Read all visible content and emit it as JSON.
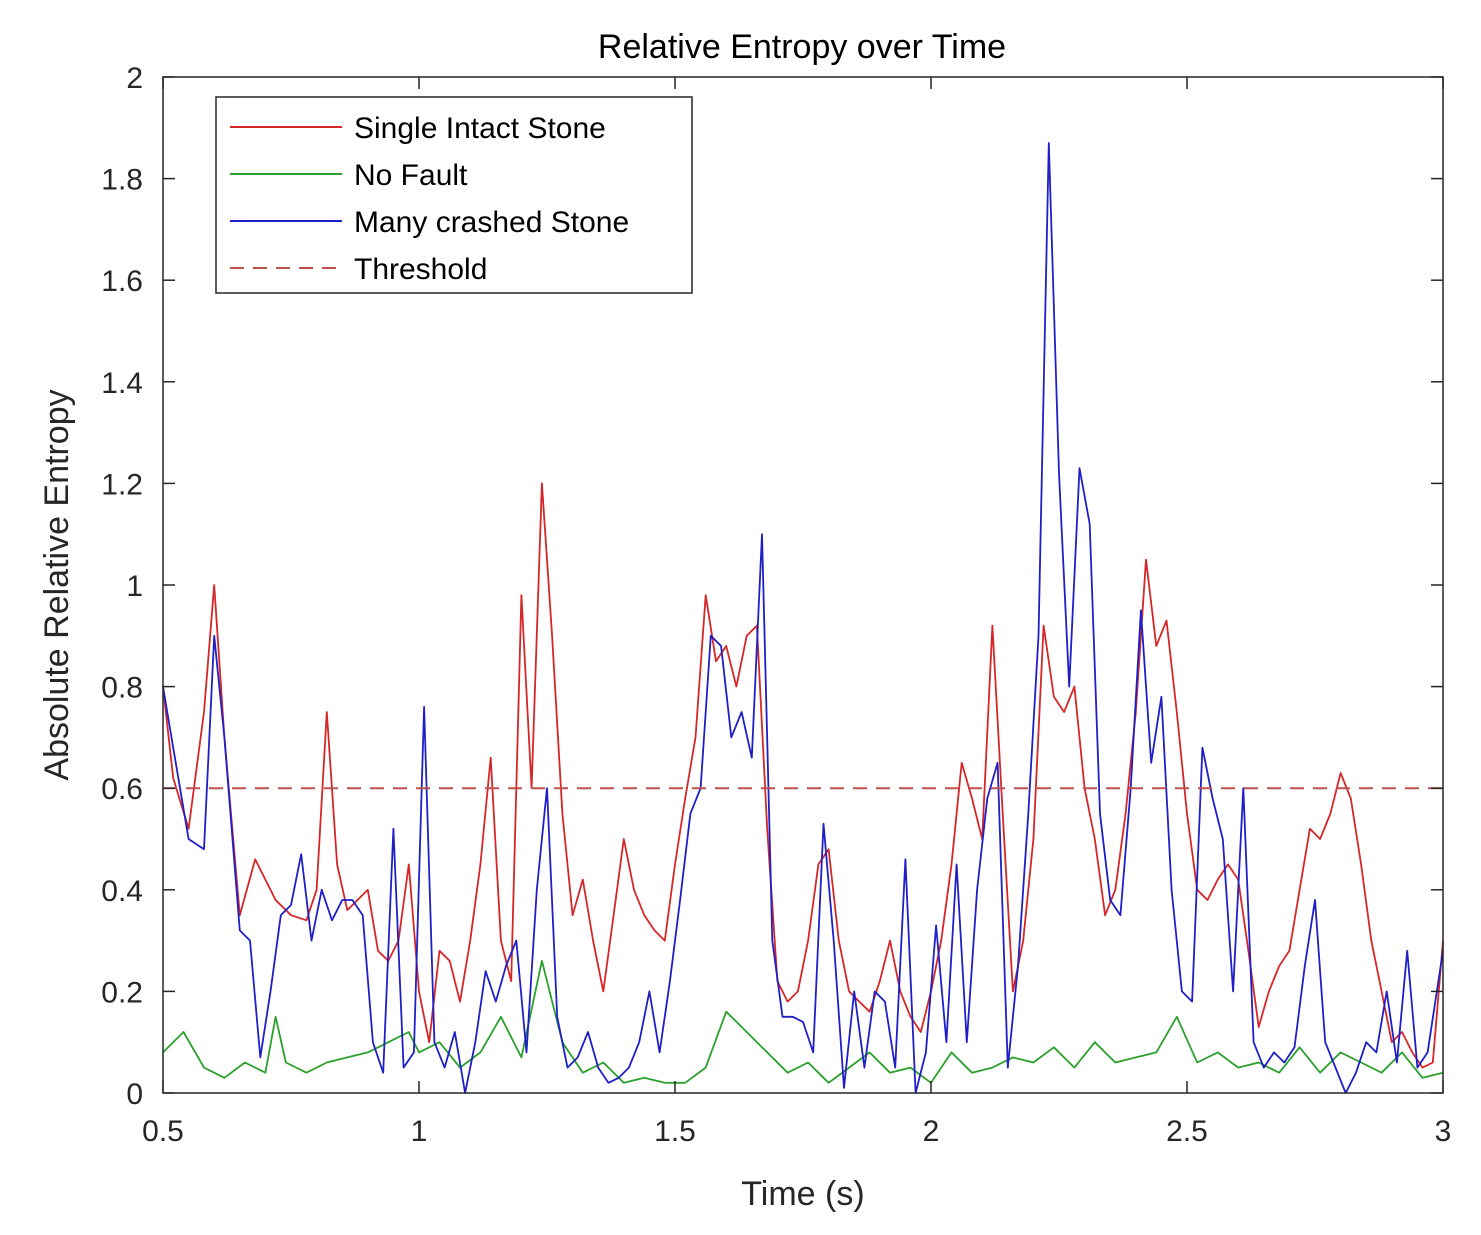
{
  "chart_data": {
    "type": "line",
    "title": "Relative Entropy over Time",
    "xlabel": "Time (s)",
    "ylabel": "Absolute Relative Entropy",
    "xlim": [
      0.5,
      3
    ],
    "ylim": [
      0,
      2
    ],
    "xticks": [
      0.5,
      1,
      1.5,
      2,
      2.5,
      3
    ],
    "xtick_labels": [
      "0.5",
      "1",
      "1.5",
      "2",
      "2.5",
      "3"
    ],
    "yticks": [
      0,
      0.2,
      0.4,
      0.6,
      0.8,
      1,
      1.2,
      1.4,
      1.6,
      1.8,
      2
    ],
    "ytick_labels": [
      "0",
      "0.2",
      "0.4",
      "0.6",
      "0.8",
      "1",
      "1.2",
      "1.4",
      "1.6",
      "1.8",
      "2"
    ],
    "grid": false,
    "legend_position": "top-left",
    "threshold": 0.6,
    "series": [
      {
        "name": "Single Intact Stone",
        "color": "#d62728",
        "style": "solid",
        "x": [
          0.5,
          0.52,
          0.55,
          0.58,
          0.6,
          0.62,
          0.65,
          0.68,
          0.7,
          0.72,
          0.75,
          0.78,
          0.8,
          0.82,
          0.84,
          0.86,
          0.88,
          0.9,
          0.92,
          0.94,
          0.96,
          0.98,
          1.0,
          1.02,
          1.04,
          1.06,
          1.08,
          1.1,
          1.12,
          1.14,
          1.16,
          1.18,
          1.2,
          1.22,
          1.24,
          1.26,
          1.28,
          1.3,
          1.32,
          1.34,
          1.36,
          1.38,
          1.4,
          1.42,
          1.44,
          1.46,
          1.48,
          1.5,
          1.52,
          1.54,
          1.56,
          1.58,
          1.6,
          1.62,
          1.64,
          1.66,
          1.68,
          1.7,
          1.72,
          1.74,
          1.76,
          1.78,
          1.8,
          1.82,
          1.84,
          1.86,
          1.88,
          1.9,
          1.92,
          1.94,
          1.96,
          1.98,
          2.0,
          2.02,
          2.04,
          2.06,
          2.08,
          2.1,
          2.12,
          2.14,
          2.16,
          2.18,
          2.2,
          2.22,
          2.24,
          2.26,
          2.28,
          2.3,
          2.32,
          2.34,
          2.36,
          2.38,
          2.4,
          2.42,
          2.44,
          2.46,
          2.48,
          2.5,
          2.52,
          2.54,
          2.56,
          2.58,
          2.6,
          2.62,
          2.64,
          2.66,
          2.68,
          2.7,
          2.72,
          2.74,
          2.76,
          2.78,
          2.8,
          2.82,
          2.84,
          2.86,
          2.88,
          2.9,
          2.92,
          2.94,
          2.96,
          2.98,
          3.0
        ],
        "y": [
          0.8,
          0.62,
          0.52,
          0.75,
          1.0,
          0.7,
          0.35,
          0.46,
          0.42,
          0.38,
          0.35,
          0.34,
          0.4,
          0.75,
          0.45,
          0.36,
          0.38,
          0.4,
          0.28,
          0.26,
          0.3,
          0.45,
          0.2,
          0.1,
          0.28,
          0.26,
          0.18,
          0.3,
          0.45,
          0.66,
          0.3,
          0.22,
          0.98,
          0.6,
          1.2,
          0.9,
          0.55,
          0.35,
          0.42,
          0.3,
          0.2,
          0.35,
          0.5,
          0.4,
          0.35,
          0.32,
          0.3,
          0.45,
          0.58,
          0.7,
          0.98,
          0.85,
          0.88,
          0.8,
          0.9,
          0.92,
          0.52,
          0.22,
          0.18,
          0.2,
          0.3,
          0.45,
          0.48,
          0.3,
          0.2,
          0.18,
          0.16,
          0.22,
          0.3,
          0.2,
          0.15,
          0.12,
          0.2,
          0.3,
          0.45,
          0.65,
          0.58,
          0.5,
          0.92,
          0.55,
          0.2,
          0.3,
          0.5,
          0.92,
          0.78,
          0.75,
          0.8,
          0.6,
          0.5,
          0.35,
          0.4,
          0.55,
          0.75,
          1.05,
          0.88,
          0.93,
          0.75,
          0.55,
          0.4,
          0.38,
          0.42,
          0.45,
          0.42,
          0.28,
          0.13,
          0.2,
          0.25,
          0.28,
          0.4,
          0.52,
          0.5,
          0.55,
          0.63,
          0.58,
          0.45,
          0.3,
          0.2,
          0.1,
          0.12,
          0.08,
          0.05,
          0.06,
          0.3
        ]
      },
      {
        "name": "No Fault",
        "color": "#2ca02c",
        "style": "solid",
        "x": [
          0.5,
          0.54,
          0.58,
          0.62,
          0.66,
          0.7,
          0.72,
          0.74,
          0.78,
          0.82,
          0.86,
          0.9,
          0.94,
          0.98,
          1.0,
          1.04,
          1.08,
          1.12,
          1.16,
          1.2,
          1.24,
          1.28,
          1.32,
          1.36,
          1.4,
          1.44,
          1.48,
          1.52,
          1.56,
          1.6,
          1.64,
          1.68,
          1.72,
          1.76,
          1.8,
          1.84,
          1.88,
          1.92,
          1.96,
          2.0,
          2.04,
          2.08,
          2.12,
          2.16,
          2.2,
          2.24,
          2.28,
          2.32,
          2.36,
          2.4,
          2.44,
          2.48,
          2.52,
          2.56,
          2.6,
          2.64,
          2.68,
          2.72,
          2.76,
          2.8,
          2.84,
          2.88,
          2.92,
          2.96,
          3.0
        ],
        "y": [
          0.08,
          0.12,
          0.05,
          0.03,
          0.06,
          0.04,
          0.15,
          0.06,
          0.04,
          0.06,
          0.07,
          0.08,
          0.1,
          0.12,
          0.08,
          0.1,
          0.05,
          0.08,
          0.15,
          0.07,
          0.26,
          0.1,
          0.04,
          0.06,
          0.02,
          0.03,
          0.02,
          0.02,
          0.05,
          0.16,
          0.12,
          0.08,
          0.04,
          0.06,
          0.02,
          0.05,
          0.08,
          0.04,
          0.05,
          0.02,
          0.08,
          0.04,
          0.05,
          0.07,
          0.06,
          0.09,
          0.05,
          0.1,
          0.06,
          0.07,
          0.08,
          0.15,
          0.06,
          0.08,
          0.05,
          0.06,
          0.04,
          0.09,
          0.04,
          0.08,
          0.06,
          0.04,
          0.08,
          0.03,
          0.04
        ]
      },
      {
        "name": "Many crashed Stone",
        "color": "#1f1fc8",
        "style": "solid",
        "x": [
          0.5,
          0.52,
          0.55,
          0.58,
          0.6,
          0.62,
          0.65,
          0.67,
          0.69,
          0.71,
          0.73,
          0.75,
          0.77,
          0.79,
          0.81,
          0.83,
          0.85,
          0.87,
          0.89,
          0.91,
          0.93,
          0.95,
          0.97,
          0.99,
          1.01,
          1.03,
          1.05,
          1.07,
          1.09,
          1.11,
          1.13,
          1.15,
          1.17,
          1.19,
          1.21,
          1.23,
          1.25,
          1.27,
          1.29,
          1.31,
          1.33,
          1.35,
          1.37,
          1.39,
          1.41,
          1.43,
          1.45,
          1.47,
          1.49,
          1.51,
          1.53,
          1.55,
          1.57,
          1.59,
          1.61,
          1.63,
          1.65,
          1.67,
          1.69,
          1.71,
          1.73,
          1.75,
          1.77,
          1.79,
          1.81,
          1.83,
          1.85,
          1.87,
          1.89,
          1.91,
          1.93,
          1.95,
          1.97,
          1.99,
          2.01,
          2.03,
          2.05,
          2.07,
          2.09,
          2.11,
          2.13,
          2.15,
          2.17,
          2.19,
          2.21,
          2.23,
          2.25,
          2.27,
          2.29,
          2.31,
          2.33,
          2.35,
          2.37,
          2.39,
          2.41,
          2.43,
          2.45,
          2.47,
          2.49,
          2.51,
          2.53,
          2.55,
          2.57,
          2.59,
          2.61,
          2.63,
          2.65,
          2.67,
          2.69,
          2.71,
          2.73,
          2.75,
          2.77,
          2.79,
          2.81,
          2.83,
          2.85,
          2.87,
          2.89,
          2.91,
          2.93,
          2.95,
          2.97,
          3.0
        ],
        "y": [
          0.8,
          0.68,
          0.5,
          0.48,
          0.9,
          0.7,
          0.32,
          0.3,
          0.07,
          0.2,
          0.35,
          0.37,
          0.47,
          0.3,
          0.4,
          0.34,
          0.38,
          0.38,
          0.35,
          0.1,
          0.04,
          0.52,
          0.05,
          0.08,
          0.76,
          0.1,
          0.05,
          0.12,
          0.0,
          0.1,
          0.24,
          0.18,
          0.25,
          0.3,
          0.08,
          0.4,
          0.6,
          0.15,
          0.05,
          0.07,
          0.12,
          0.05,
          0.02,
          0.03,
          0.05,
          0.1,
          0.2,
          0.08,
          0.22,
          0.38,
          0.55,
          0.6,
          0.9,
          0.88,
          0.7,
          0.75,
          0.66,
          1.1,
          0.3,
          0.15,
          0.15,
          0.14,
          0.08,
          0.53,
          0.3,
          0.01,
          0.2,
          0.05,
          0.2,
          0.18,
          0.05,
          0.46,
          0.0,
          0.08,
          0.33,
          0.1,
          0.45,
          0.1,
          0.4,
          0.58,
          0.65,
          0.05,
          0.25,
          0.55,
          0.9,
          1.87,
          1.22,
          0.8,
          1.23,
          1.12,
          0.55,
          0.38,
          0.35,
          0.6,
          0.95,
          0.65,
          0.78,
          0.4,
          0.2,
          0.18,
          0.68,
          0.58,
          0.5,
          0.2,
          0.6,
          0.1,
          0.05,
          0.08,
          0.06,
          0.09,
          0.25,
          0.38,
          0.1,
          0.05,
          0.0,
          0.04,
          0.1,
          0.08,
          0.2,
          0.06,
          0.28,
          0.05,
          0.08,
          0.28
        ]
      },
      {
        "name": "Threshold",
        "color": "#c0504d",
        "style": "dashed",
        "x": [
          0.5,
          3.0
        ],
        "y": [
          0.6,
          0.6
        ]
      }
    ]
  },
  "colors": {
    "axis": "#262626",
    "background": "#ffffff"
  }
}
